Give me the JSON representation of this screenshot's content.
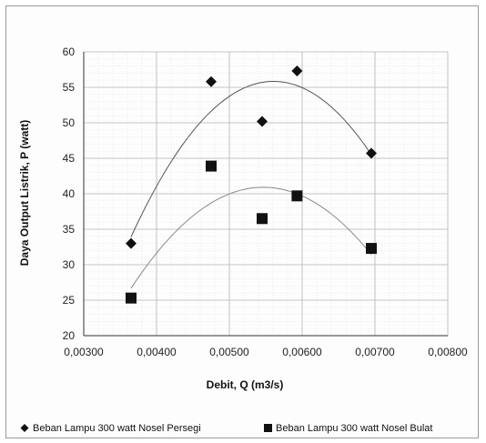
{
  "chart_data": {
    "type": "scatter",
    "xlabel": "Debit, Q (m3/s)",
    "ylabel": "Daya Output Listrik, P  (watt)",
    "xlim": [
      0.003,
      0.008
    ],
    "ylim": [
      20,
      60
    ],
    "x_ticks": [
      "0,00300",
      "0,00400",
      "0,00500",
      "0,00600",
      "0,00700",
      "0,00800"
    ],
    "y_ticks": [
      "20",
      "25",
      "30",
      "35",
      "40",
      "45",
      "50",
      "55",
      "60"
    ],
    "grid": true,
    "legend_position": "bottom",
    "series": [
      {
        "name": "Beban Lampu 300 watt Nosel Persegi",
        "marker": "diamond",
        "color": "#111111",
        "trendline": "polynomial",
        "x": [
          0.00365,
          0.00475,
          0.00545,
          0.00593,
          0.00695
        ],
        "y": [
          33.0,
          55.8,
          50.2,
          57.3,
          45.7
        ]
      },
      {
        "name": "Beban Lampu 300 watt Nosel Bulat",
        "marker": "square",
        "color": "#111111",
        "trendline": "polynomial",
        "x": [
          0.00365,
          0.00475,
          0.00545,
          0.00593,
          0.00695
        ],
        "y": [
          25.3,
          43.9,
          36.5,
          39.7,
          32.3
        ]
      }
    ]
  }
}
